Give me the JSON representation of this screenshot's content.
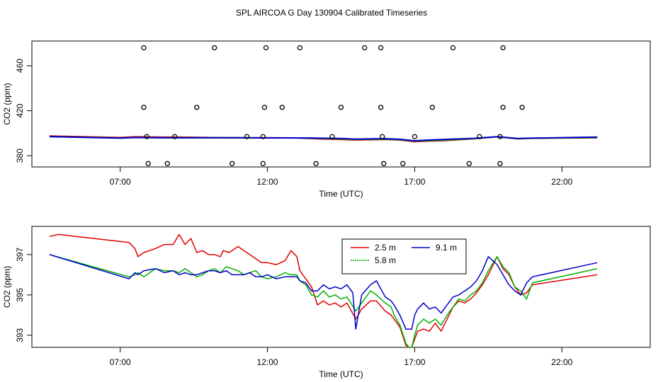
{
  "chart_data": {
    "title": "SPL AIRCOA G  Day 130904  Calibrated Timeseries",
    "panels": [
      {
        "type": "line",
        "xlabel": "Time (UTC)",
        "ylabel": "CO2 (ppm)",
        "xlim": [
          4.0,
          25.0
        ],
        "ylim": [
          370,
          482
        ],
        "x_ticks": [
          7,
          12,
          17,
          22
        ],
        "x_tick_labels": [
          "07:00",
          "12:00",
          "17:00",
          "22:00"
        ],
        "y_ticks": [
          380,
          420,
          460
        ],
        "y_tick_labels": [
          "380",
          "420",
          "460"
        ],
        "series": [
          {
            "name": "2.5 m",
            "color": "#e00000",
            "x": [
              4.6,
              7.0,
              7.5,
              8.5,
              9.0,
              10.0,
              11.0,
              12.0,
              13.0,
              13.7,
              14.5,
              15.0,
              16.0,
              16.5,
              17.0,
              17.5,
              18.0,
              19.0,
              19.8,
              20.5,
              21.0,
              23.2
            ],
            "y": [
              397.5,
              396.2,
              396.8,
              396.5,
              396.5,
              396.2,
              396.0,
              396.0,
              395.8,
              395.0,
              394.5,
              394.0,
              394.5,
              394.0,
              392.5,
              393.0,
              393.5,
              395.0,
              396.8,
              395.0,
              395.5,
              396.0
            ]
          },
          {
            "name": "5.8 m",
            "color": "#00b000",
            "x": [
              4.6,
              7.0,
              7.5,
              8.5,
              9.0,
              10.0,
              11.0,
              12.0,
              13.0,
              13.7,
              14.5,
              15.0,
              16.0,
              16.5,
              17.0,
              17.5,
              18.0,
              19.0,
              19.8,
              20.5,
              21.0,
              23.2
            ],
            "y": [
              397.0,
              395.8,
              396.2,
              396.0,
              396.0,
              396.0,
              396.0,
              395.8,
              395.8,
              395.5,
              395.0,
              394.5,
              394.8,
              394.3,
              393.0,
              393.5,
              394.0,
              395.2,
              396.8,
              395.2,
              395.6,
              396.2
            ]
          },
          {
            "name": "9.1 m",
            "color": "#0000cc",
            "x": [
              4.6,
              7.0,
              7.5,
              8.5,
              9.0,
              10.0,
              11.0,
              12.0,
              13.0,
              13.7,
              14.5,
              15.0,
              16.0,
              16.5,
              17.0,
              17.5,
              18.0,
              19.0,
              19.8,
              20.5,
              21.0,
              23.2
            ],
            "y": [
              397.0,
              395.6,
              396.2,
              396.0,
              396.0,
              396.0,
              396.0,
              395.8,
              395.8,
              395.6,
              395.3,
              394.8,
              395.2,
              394.6,
              393.3,
              394.0,
              394.5,
              395.4,
              396.9,
              395.3,
              395.6,
              396.6
            ]
          }
        ],
        "outliers": {
          "x": [
            7.8,
            10.2,
            11.95,
            13.1,
            15.3,
            15.85,
            18.3,
            20.0,
            7.8,
            9.6,
            11.9,
            12.5,
            14.5,
            15.85,
            17.6,
            20.0,
            20.65,
            7.9,
            8.85,
            11.3,
            11.85,
            14.2,
            15.9,
            17.0,
            19.2,
            19.9,
            7.95,
            8.6,
            10.8,
            11.85,
            13.65,
            15.95,
            16.6,
            18.85,
            19.9
          ],
          "y": [
            476,
            476,
            476,
            476,
            476,
            476,
            476,
            476,
            423,
            423,
            423,
            423,
            423,
            423,
            423,
            423,
            423,
            397,
            397,
            397,
            397,
            397,
            397,
            397,
            397,
            397,
            373,
            373,
            373,
            373,
            373,
            373,
            373,
            373,
            373
          ]
        }
      },
      {
        "type": "line",
        "xlabel": "Time (UTC)",
        "ylabel": "CO2 (ppm)",
        "xlim": [
          4.0,
          25.0
        ],
        "ylim": [
          392.4,
          398.4
        ],
        "x_ticks": [
          7,
          12,
          17,
          22
        ],
        "x_tick_labels": [
          "07:00",
          "12:00",
          "17:00",
          "22:00"
        ],
        "y_ticks": [
          393,
          395,
          397
        ],
        "y_tick_labels": [
          "393",
          "395",
          "397"
        ],
        "legend": {
          "placement": "top-center"
        },
        "series": [
          {
            "name": "2.5 m",
            "color": "#e00000",
            "x": [
              4.6,
              4.9,
              7.3,
              7.5,
              7.6,
              7.8,
              8.2,
              8.5,
              8.8,
              9.0,
              9.2,
              9.4,
              9.6,
              9.8,
              10.0,
              10.2,
              10.4,
              10.5,
              10.7,
              11.0,
              11.2,
              11.4,
              11.6,
              11.8,
              12.0,
              12.3,
              12.6,
              12.8,
              13.0,
              13.1,
              13.3,
              13.5,
              13.7,
              13.9,
              14.1,
              14.3,
              14.5,
              14.7,
              15.0,
              15.2,
              15.5,
              15.7,
              16.0,
              16.2,
              16.3,
              16.5,
              16.7,
              16.8,
              16.9,
              17.0,
              17.1,
              17.3,
              17.5,
              17.7,
              17.9,
              18.1,
              18.3,
              18.5,
              18.7,
              18.9,
              19.1,
              19.3,
              19.5,
              19.8,
              20.0,
              20.2,
              20.4,
              20.6,
              20.8,
              21.0,
              23.2
            ],
            "y": [
              397.9,
              398.0,
              397.6,
              397.3,
              396.9,
              397.1,
              397.3,
              397.5,
              397.5,
              398.0,
              397.5,
              397.8,
              397.1,
              397.2,
              397.0,
              397.0,
              396.9,
              397.2,
              397.1,
              397.4,
              397.2,
              397.0,
              396.8,
              396.6,
              396.6,
              396.5,
              396.7,
              397.2,
              396.9,
              396.2,
              395.8,
              395.4,
              394.5,
              394.7,
              394.5,
              394.6,
              394.4,
              394.6,
              393.8,
              394.3,
              394.7,
              394.7,
              394.2,
              394.0,
              393.8,
              393.4,
              392.5,
              392.4,
              392.4,
              392.8,
              393.2,
              393.3,
              393.2,
              393.6,
              393.2,
              393.8,
              394.4,
              394.7,
              394.6,
              394.8,
              395.1,
              395.5,
              396.0,
              396.9,
              396.3,
              396.0,
              395.4,
              395.0,
              395.1,
              395.5,
              396.0
            ]
          },
          {
            "name": "5.8 m",
            "color": "#00b000",
            "x": [
              4.6,
              7.3,
              7.5,
              7.6,
              7.8,
              8.2,
              8.5,
              8.8,
              9.0,
              9.2,
              9.4,
              9.6,
              9.8,
              10.0,
              10.2,
              10.4,
              10.6,
              10.8,
              11.0,
              11.2,
              11.4,
              11.6,
              11.8,
              12.0,
              12.3,
              12.6,
              12.8,
              13.0,
              13.1,
              13.3,
              13.5,
              13.7,
              13.9,
              14.1,
              14.3,
              14.5,
              14.7,
              15.0,
              15.2,
              15.5,
              15.7,
              16.0,
              16.2,
              16.3,
              16.5,
              16.7,
              16.8,
              16.9,
              17.0,
              17.1,
              17.3,
              17.5,
              17.7,
              17.9,
              18.1,
              18.3,
              18.5,
              18.7,
              18.9,
              19.1,
              19.3,
              19.5,
              19.8,
              20.0,
              20.2,
              20.4,
              20.6,
              20.8,
              21.0,
              23.2
            ],
            "y": [
              397.0,
              395.9,
              396.0,
              396.1,
              395.9,
              396.3,
              396.2,
              396.2,
              396.1,
              396.3,
              396.1,
              395.9,
              396.0,
              396.2,
              396.3,
              396.1,
              396.4,
              396.3,
              396.2,
              396.0,
              396.1,
              396.2,
              395.9,
              395.8,
              395.9,
              396.1,
              396.0,
              396.0,
              395.7,
              395.5,
              395.0,
              394.9,
              395.2,
              394.9,
              395.0,
              394.8,
              394.9,
              394.2,
              394.6,
              395.2,
              395.0,
              394.6,
              394.4,
              394.0,
              393.5,
              392.6,
              392.4,
              392.4,
              393.0,
              393.5,
              393.8,
              393.6,
              393.8,
              393.5,
              394.0,
              394.4,
              394.8,
              394.7,
              395.0,
              395.2,
              395.6,
              396.2,
              396.9,
              396.4,
              396.1,
              395.4,
              395.2,
              394.8,
              395.6,
              396.3
            ]
          },
          {
            "name": "9.1 m",
            "color": "#0000cc",
            "x": [
              4.6,
              7.3,
              7.5,
              7.6,
              7.8,
              8.2,
              8.5,
              8.8,
              9.0,
              9.2,
              9.4,
              9.6,
              9.8,
              10.0,
              10.2,
              10.4,
              10.6,
              10.8,
              11.0,
              11.2,
              11.4,
              11.6,
              11.8,
              12.0,
              12.3,
              12.6,
              12.8,
              13.0,
              13.1,
              13.3,
              13.5,
              13.7,
              13.9,
              14.1,
              14.3,
              14.5,
              14.7,
              14.9,
              15.0,
              15.2,
              15.5,
              15.7,
              16.0,
              16.2,
              16.3,
              16.5,
              16.7,
              16.8,
              16.9,
              17.0,
              17.1,
              17.3,
              17.5,
              17.7,
              17.9,
              18.1,
              18.3,
              18.5,
              18.7,
              18.9,
              19.1,
              19.3,
              19.5,
              19.8,
              20.0,
              20.2,
              20.4,
              20.6,
              20.8,
              21.0,
              23.2
            ],
            "y": [
              397.0,
              395.8,
              396.1,
              396.0,
              396.2,
              396.3,
              396.1,
              396.2,
              396.0,
              396.1,
              396.0,
              396.0,
              396.1,
              396.2,
              396.2,
              396.1,
              396.2,
              396.0,
              396.0,
              396.0,
              396.1,
              395.9,
              395.9,
              396.0,
              395.8,
              395.9,
              395.9,
              395.9,
              395.7,
              395.6,
              395.2,
              395.2,
              395.5,
              395.3,
              395.4,
              395.3,
              395.5,
              395.1,
              393.3,
              395.0,
              395.5,
              395.7,
              394.9,
              394.7,
              394.5,
              394.0,
              393.3,
              393.3,
              393.3,
              394.0,
              394.3,
              394.6,
              394.3,
              394.4,
              394.1,
              394.5,
              394.9,
              395.0,
              395.2,
              395.4,
              395.7,
              396.2,
              396.9,
              396.5,
              396.0,
              395.5,
              395.2,
              395.0,
              395.6,
              395.9,
              396.6
            ]
          }
        ]
      }
    ]
  }
}
